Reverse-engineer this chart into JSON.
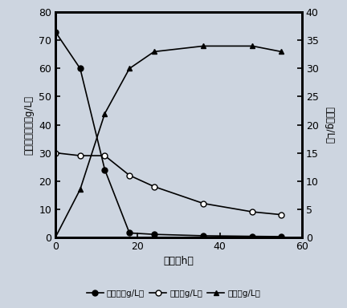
{
  "time": [
    0,
    6,
    12,
    18,
    24,
    36,
    48,
    55
  ],
  "glucose": [
    73,
    60,
    24,
    1.5,
    1.0,
    0.5,
    0.3,
    0.2
  ],
  "xylose": [
    30,
    29,
    29,
    22,
    18,
    12,
    9,
    8
  ],
  "ethanol": [
    0,
    8.5,
    22,
    30,
    33,
    34,
    34,
    33
  ],
  "left_ylim": [
    0,
    80
  ],
  "left_yticks": [
    0,
    10,
    20,
    30,
    40,
    50,
    60,
    70,
    80
  ],
  "right_ylim": [
    0,
    40
  ],
  "right_yticks": [
    0,
    5,
    10,
    15,
    20,
    25,
    30,
    35,
    40
  ],
  "xlim": [
    0,
    60
  ],
  "xticks": [
    0,
    20,
    40,
    60
  ],
  "xlabel": "时间（h）",
  "left_ylabel": "葡萄糖　木糖（g/L）",
  "right_ylabel": "乙醇（g/L）",
  "legend_glucose": "葡萄糖（g/L）",
  "legend_xylose": "木糖（g/L）",
  "legend_ethanol": "乙醇（g/L）",
  "line_color": "black",
  "fig_bg_color": "#cdd5e0",
  "plot_bg_color": "#cdd5e0"
}
